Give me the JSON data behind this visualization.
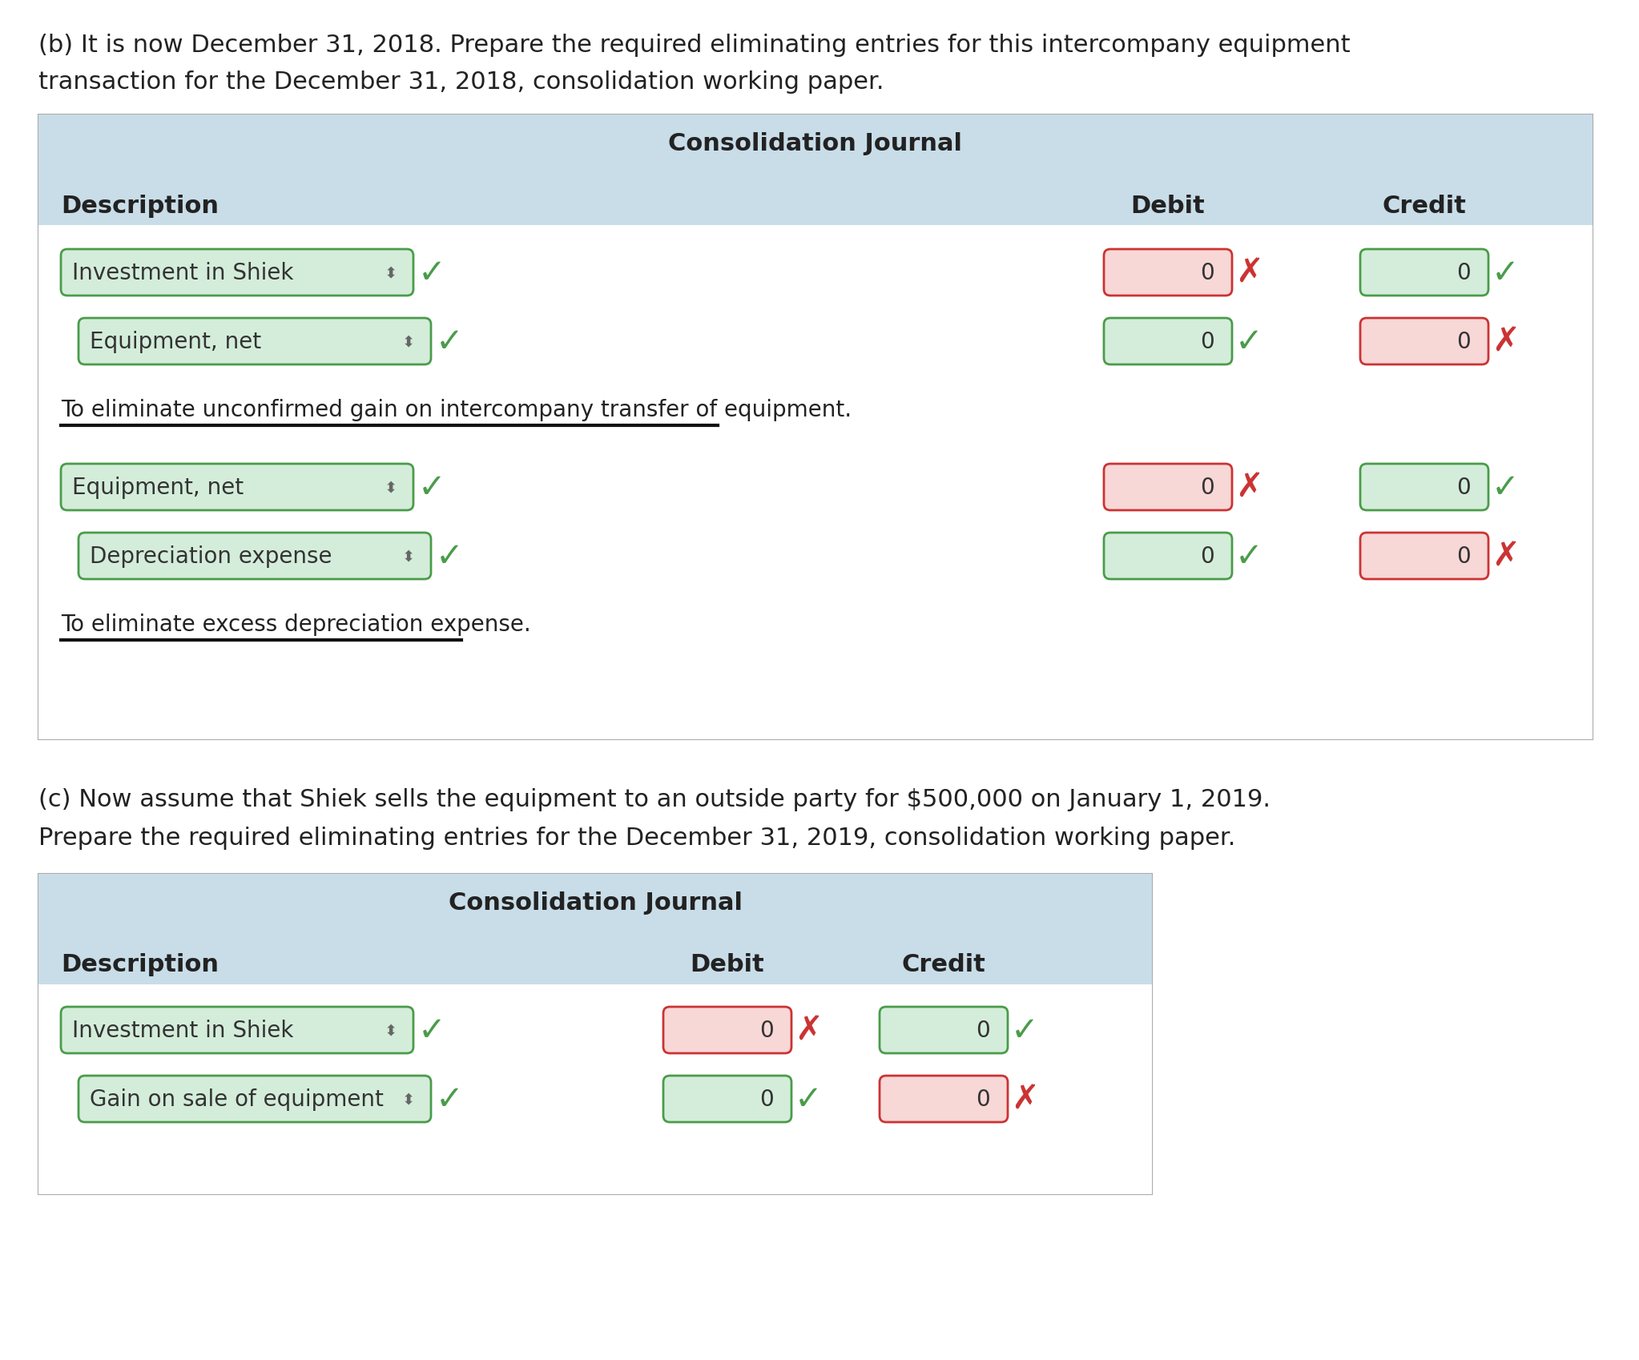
{
  "bg_color": "#ffffff",
  "outer_bg": "#f0f0f0",
  "table_header_bg": "#c8dde8",
  "table_bg": "#daeaf3",
  "green_box_bg": "#d4edda",
  "green_box_border": "#4a9c4a",
  "red_box_bg": "#f8d7d7",
  "red_box_border": "#cc3333",
  "text_color": "#222222",
  "para_b_text1": "(b) It is now December 31, 2018. Prepare the required eliminating entries for this intercompany equipment",
  "para_b_text2": "transaction for the December 31, 2018, consolidation working paper.",
  "para_c_text1": "(c) Now assume that Shiek sells the equipment to an outside party for $500,000 on January 1, 2019.",
  "para_c_text2": "Prepare the required eliminating entries for the December 31, 2019, consolidation working paper.",
  "journal_title": "Consolidation Journal",
  "col_description": "Description",
  "col_debit": "Debit",
  "col_credit": "Credit",
  "note1": "To eliminate unconfirmed gain on intercompany transfer of equipment.",
  "note2": "To eliminate excess depreciation expense.",
  "table_b_rows": [
    {
      "desc": "Investment in Shiek",
      "debit_red": true,
      "credit_red": false
    },
    {
      "desc": "Equipment, net",
      "debit_red": false,
      "credit_red": true
    }
  ],
  "table_b_rows2": [
    {
      "desc": "Equipment, net",
      "debit_red": true,
      "credit_red": false
    },
    {
      "desc": "Depreciation expense",
      "debit_red": false,
      "credit_red": true
    }
  ],
  "table_c_rows": [
    {
      "desc": "Investment in Shiek",
      "debit_red": true,
      "credit_red": false
    },
    {
      "desc": "Gain on sale of equipment",
      "debit_red": false,
      "credit_red": true
    }
  ]
}
